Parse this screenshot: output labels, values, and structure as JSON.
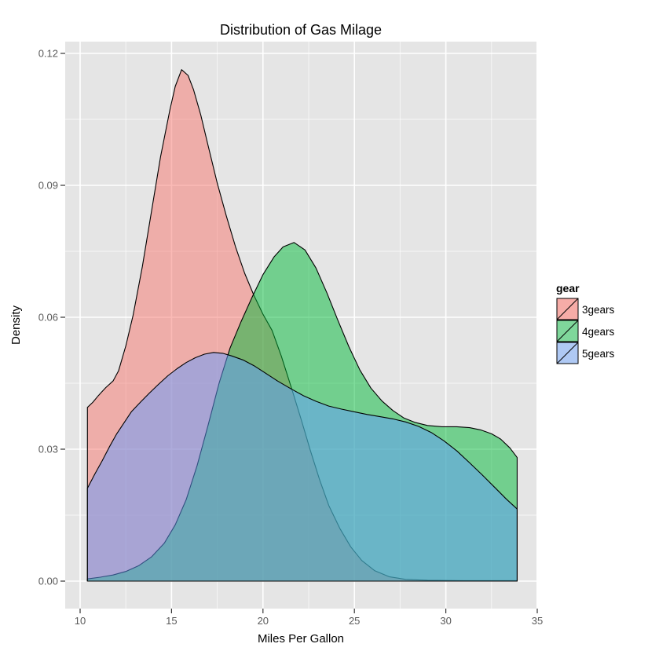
{
  "chart_data": {
    "type": "area",
    "title": "Distribution of Gas Milage",
    "xlabel": "Miles Per Gallon",
    "ylabel": "Density",
    "x_ticks": {
      "values": [
        10,
        15,
        20,
        25,
        30,
        35
      ],
      "labels": [
        "10",
        "15",
        "20",
        "25",
        "30",
        "35"
      ]
    },
    "x_minor": [
      12.5,
      17.5,
      22.5,
      27.5,
      32.5
    ],
    "y_ticks": {
      "values": [
        0.0,
        0.03,
        0.06,
        0.09,
        0.12
      ],
      "labels": [
        "0.00",
        "0.03",
        "0.06",
        "0.09",
        "0.12"
      ]
    },
    "y_minor": [
      0.015,
      0.045,
      0.075,
      0.105
    ],
    "xlim": [
      9.18,
      34.97
    ],
    "ylim": [
      -0.00625,
      0.1227
    ],
    "grid": true,
    "legend_position": "right",
    "panel_color": "#E5E5E5",
    "gridline_color": "#FFFFFF",
    "outline_color": "#000000",
    "fill_alpha": 0.5,
    "legend": {
      "title": "gear",
      "entries": [
        {
          "label": "3gears",
          "swatch_color": "#F6ACA7"
        },
        {
          "label": "4gears",
          "swatch_color": "#7FD79B"
        },
        {
          "label": "5gears",
          "swatch_color": "#AFC9F4"
        }
      ]
    },
    "series": [
      {
        "name": "3gears",
        "color": "#F8766D",
        "points": [
          [
            10.4,
            0.0395
          ],
          [
            10.7,
            0.0407
          ],
          [
            11.0,
            0.0422
          ],
          [
            11.4,
            0.044
          ],
          [
            11.8,
            0.0455
          ],
          [
            12.1,
            0.0478
          ],
          [
            12.5,
            0.0535
          ],
          [
            12.9,
            0.0605
          ],
          [
            13.4,
            0.0715
          ],
          [
            13.9,
            0.084
          ],
          [
            14.4,
            0.0965
          ],
          [
            14.9,
            0.107
          ],
          [
            15.2,
            0.1125
          ],
          [
            15.55,
            0.1163
          ],
          [
            15.9,
            0.115
          ],
          [
            16.2,
            0.1118
          ],
          [
            16.6,
            0.106
          ],
          [
            17.0,
            0.099
          ],
          [
            17.5,
            0.0905
          ],
          [
            18.0,
            0.083
          ],
          [
            18.5,
            0.076
          ],
          [
            19.0,
            0.07
          ],
          [
            19.5,
            0.065
          ],
          [
            20.0,
            0.0607
          ],
          [
            20.5,
            0.057
          ],
          [
            21.0,
            0.0512
          ],
          [
            21.6,
            0.0434
          ],
          [
            22.1,
            0.0366
          ],
          [
            22.6,
            0.0296
          ],
          [
            23.1,
            0.023
          ],
          [
            23.6,
            0.0172
          ],
          [
            24.2,
            0.012
          ],
          [
            24.8,
            0.0078
          ],
          [
            25.4,
            0.0047
          ],
          [
            26.1,
            0.0024
          ],
          [
            26.9,
            0.001
          ],
          [
            27.8,
            0.0004
          ],
          [
            29.0,
            0.0002
          ],
          [
            31.0,
            0.0001
          ],
          [
            33.9,
            0.0001
          ]
        ]
      },
      {
        "name": "4gears",
        "color": "#00BA38",
        "points": [
          [
            10.4,
            0.0005
          ],
          [
            11.1,
            0.0009
          ],
          [
            11.8,
            0.0014
          ],
          [
            12.5,
            0.0022
          ],
          [
            13.2,
            0.0035
          ],
          [
            13.9,
            0.0055
          ],
          [
            14.6,
            0.0086
          ],
          [
            15.2,
            0.0128
          ],
          [
            15.8,
            0.0185
          ],
          [
            16.4,
            0.0263
          ],
          [
            17.0,
            0.0355
          ],
          [
            17.6,
            0.045
          ],
          [
            18.2,
            0.053
          ],
          [
            18.8,
            0.059
          ],
          [
            19.4,
            0.0645
          ],
          [
            20.0,
            0.0697
          ],
          [
            20.6,
            0.0737
          ],
          [
            21.1,
            0.076
          ],
          [
            21.7,
            0.077
          ],
          [
            22.3,
            0.0753
          ],
          [
            22.9,
            0.0712
          ],
          [
            23.5,
            0.0655
          ],
          [
            24.1,
            0.0593
          ],
          [
            24.7,
            0.0533
          ],
          [
            25.3,
            0.048
          ],
          [
            25.9,
            0.0439
          ],
          [
            26.5,
            0.041
          ],
          [
            27.1,
            0.0388
          ],
          [
            27.7,
            0.0371
          ],
          [
            28.3,
            0.0361
          ],
          [
            29.0,
            0.0354
          ],
          [
            29.8,
            0.0351
          ],
          [
            30.6,
            0.0351
          ],
          [
            31.3,
            0.0349
          ],
          [
            31.9,
            0.0344
          ],
          [
            32.5,
            0.0335
          ],
          [
            33.0,
            0.0323
          ],
          [
            33.5,
            0.0303
          ],
          [
            33.9,
            0.0281
          ]
        ]
      },
      {
        "name": "5gears",
        "color": "#619CFF",
        "points": [
          [
            10.4,
            0.0211
          ],
          [
            10.8,
            0.0243
          ],
          [
            11.2,
            0.0273
          ],
          [
            11.6,
            0.0305
          ],
          [
            12.0,
            0.0335
          ],
          [
            12.4,
            0.036
          ],
          [
            12.8,
            0.0385
          ],
          [
            13.3,
            0.0407
          ],
          [
            13.8,
            0.0428
          ],
          [
            14.3,
            0.0448
          ],
          [
            14.8,
            0.0467
          ],
          [
            15.3,
            0.0483
          ],
          [
            15.8,
            0.0497
          ],
          [
            16.3,
            0.0508
          ],
          [
            16.8,
            0.0516
          ],
          [
            17.3,
            0.052
          ],
          [
            17.8,
            0.0518
          ],
          [
            18.3,
            0.0512
          ],
          [
            18.9,
            0.0503
          ],
          [
            19.5,
            0.049
          ],
          [
            20.1,
            0.0474
          ],
          [
            20.8,
            0.0455
          ],
          [
            21.5,
            0.0438
          ],
          [
            22.2,
            0.0422
          ],
          [
            22.9,
            0.0409
          ],
          [
            23.6,
            0.0398
          ],
          [
            24.3,
            0.0391
          ],
          [
            25.0,
            0.0385
          ],
          [
            25.7,
            0.0379
          ],
          [
            26.4,
            0.0374
          ],
          [
            27.1,
            0.0369
          ],
          [
            27.8,
            0.0362
          ],
          [
            28.5,
            0.0352
          ],
          [
            29.2,
            0.0338
          ],
          [
            29.9,
            0.0319
          ],
          [
            30.6,
            0.0296
          ],
          [
            31.3,
            0.0269
          ],
          [
            32.0,
            0.0241
          ],
          [
            32.7,
            0.0212
          ],
          [
            33.3,
            0.0187
          ],
          [
            33.9,
            0.0164
          ]
        ]
      }
    ]
  }
}
